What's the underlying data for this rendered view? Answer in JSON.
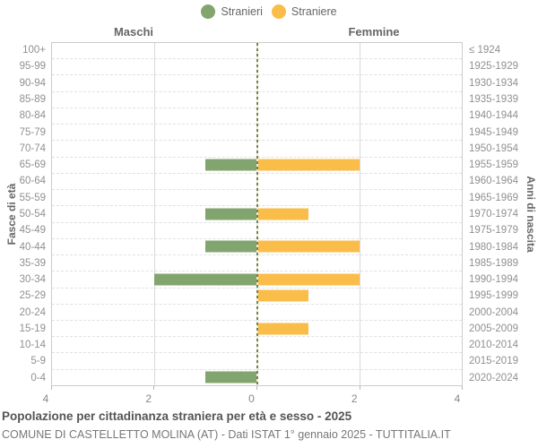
{
  "legend": {
    "items": [
      {
        "label": "Stranieri",
        "color": "#82A46E"
      },
      {
        "label": "Straniere",
        "color": "#FBBD4A"
      }
    ]
  },
  "headers": {
    "left": "Maschi",
    "right": "Femmine"
  },
  "axes": {
    "left_label": "Fasce di età",
    "right_label": "Anni di nascita",
    "x_ticks": [
      "4",
      "2",
      "0",
      "2",
      "4"
    ],
    "x_tick_positions_pct": [
      0,
      25,
      50,
      75,
      100
    ]
  },
  "chart_data": {
    "type": "bar",
    "subtype": "population-pyramid",
    "title": "Popolazione per cittadinanza straniera per età e sesso - 2025",
    "categories": [
      "100+",
      "95-99",
      "90-94",
      "85-89",
      "80-84",
      "75-79",
      "70-74",
      "65-69",
      "60-64",
      "55-59",
      "50-54",
      "45-49",
      "40-44",
      "35-39",
      "30-34",
      "25-29",
      "20-24",
      "15-19",
      "10-14",
      "5-9",
      "0-4"
    ],
    "birth_years": [
      "≤ 1924",
      "1925-1929",
      "1930-1934",
      "1935-1939",
      "1940-1944",
      "1945-1949",
      "1950-1954",
      "1955-1959",
      "1960-1964",
      "1965-1969",
      "1970-1974",
      "1975-1979",
      "1980-1984",
      "1985-1989",
      "1990-1994",
      "1995-1999",
      "2000-2004",
      "2005-2009",
      "2010-2014",
      "2015-2019",
      "2020-2024"
    ],
    "series": [
      {
        "name": "Stranieri",
        "side": "left",
        "color": "#82A46E",
        "values": [
          0,
          0,
          0,
          0,
          0,
          0,
          0,
          1,
          0,
          0,
          1,
          0,
          1,
          0,
          2,
          0,
          0,
          0,
          0,
          0,
          1
        ]
      },
      {
        "name": "Straniere",
        "side": "right",
        "color": "#FBBD4A",
        "values": [
          0,
          0,
          0,
          0,
          0,
          0,
          0,
          2,
          0,
          0,
          1,
          0,
          2,
          0,
          2,
          1,
          0,
          1,
          0,
          0,
          0
        ]
      }
    ],
    "xlim": [
      0,
      4
    ],
    "grid": true,
    "legend_position": "top-center"
  },
  "footer": {
    "title": "Popolazione per cittadinanza straniera per età e sesso - 2025",
    "subtitle": "COMUNE DI CASTELLETTO MOLINA (AT) - Dati ISTAT 1° gennaio 2025 - TUTTITALIA.IT"
  }
}
